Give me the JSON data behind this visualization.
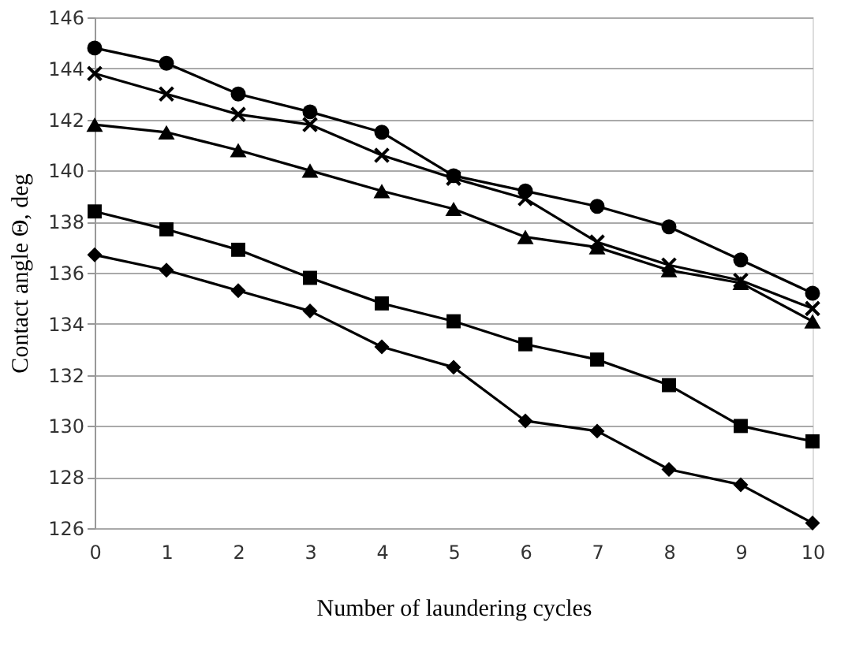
{
  "chart_data": {
    "type": "line",
    "xlabel": "Number of laundering cycles",
    "ylabel": "Contact angle Θ, deg",
    "categories": [
      "0",
      "1",
      "2",
      "3",
      "4",
      "5",
      "6",
      "7",
      "8",
      "9",
      "10"
    ],
    "ylim": [
      126,
      146
    ],
    "yticks": [
      126,
      128,
      130,
      132,
      134,
      136,
      138,
      140,
      142,
      144,
      146
    ],
    "grid": "y",
    "line_style": "solid",
    "series": [
      {
        "color": "#000000",
        "marker": "circle",
        "values": [
          144.8,
          144.2,
          143.0,
          142.3,
          141.5,
          139.8,
          139.2,
          138.6,
          137.8,
          136.5,
          135.2
        ]
      },
      {
        "color": "#000000",
        "marker": "cross",
        "values": [
          143.8,
          143.0,
          142.2,
          141.8,
          140.6,
          139.7,
          138.9,
          137.2,
          136.3,
          135.7,
          134.6
        ]
      },
      {
        "color": "#000000",
        "marker": "triangle",
        "values": [
          141.8,
          141.5,
          140.8,
          140.0,
          139.2,
          138.5,
          137.4,
          137.0,
          136.1,
          135.6,
          134.1
        ]
      },
      {
        "color": "#000000",
        "marker": "square",
        "values": [
          138.4,
          137.7,
          136.9,
          135.8,
          134.8,
          134.1,
          133.2,
          132.6,
          131.6,
          130.0,
          129.4
        ]
      },
      {
        "color": "#000000",
        "marker": "diamond",
        "values": [
          136.7,
          136.1,
          135.3,
          134.5,
          133.1,
          132.3,
          130.2,
          129.8,
          128.3,
          127.7,
          126.2
        ]
      }
    ]
  }
}
